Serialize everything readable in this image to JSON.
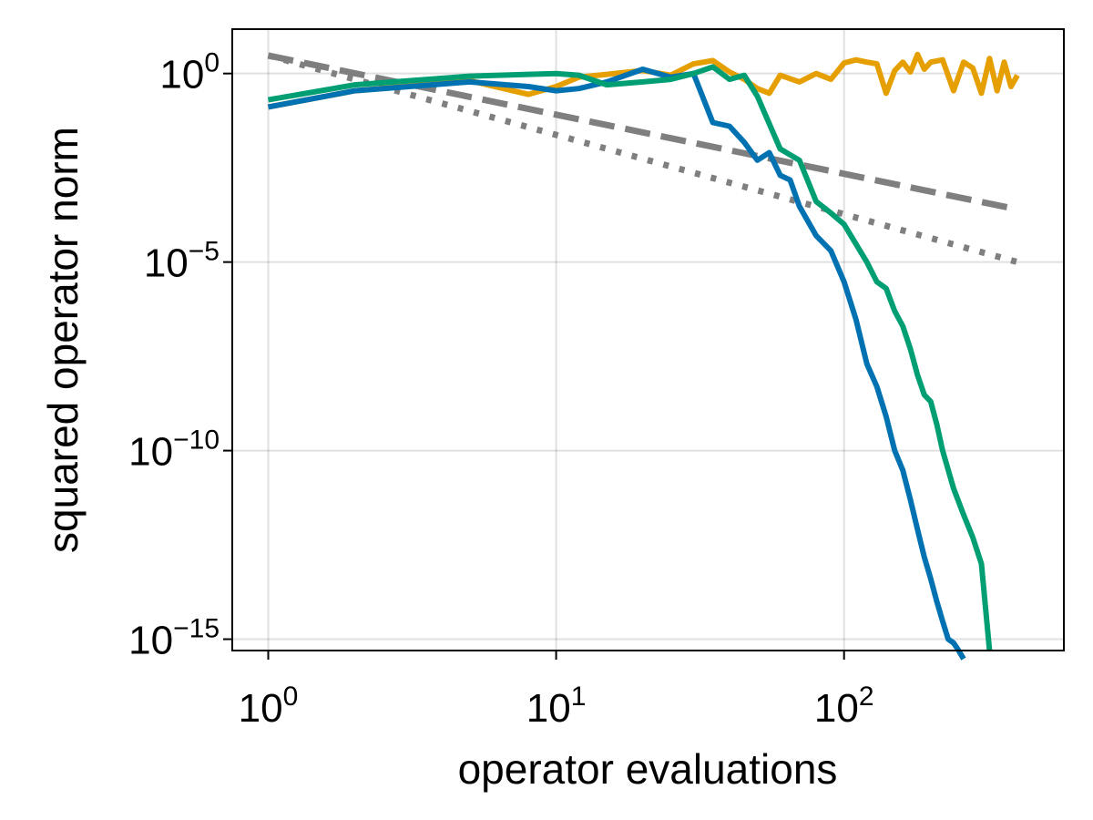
{
  "chart_data": {
    "type": "line",
    "title": "",
    "xlabel": "operator evaluations",
    "ylabel": "squared operator norm",
    "xscale": "log10",
    "yscale": "log10",
    "xlim": [
      0.75,
      580
    ],
    "ylim": [
      5e-16,
      15.0
    ],
    "grid": true,
    "legend": "none",
    "x_ticks": [
      {
        "base": "10",
        "exp": "0",
        "value": 1
      },
      {
        "base": "10",
        "exp": "1",
        "value": 10
      },
      {
        "base": "10",
        "exp": "2",
        "value": 100
      }
    ],
    "y_ticks": [
      {
        "base": "10",
        "exp": "0",
        "value": 1
      },
      {
        "base": "10",
        "exp": "−5",
        "value": 1e-05
      },
      {
        "base": "10",
        "exp": "−10",
        "value": 1e-10
      },
      {
        "base": "10",
        "exp": "−15",
        "value": 1e-15
      }
    ],
    "series": [
      {
        "color": "#E69F00",
        "style": "solid",
        "x": [
          1,
          2,
          5,
          8,
          10,
          12,
          15,
          20,
          25,
          30,
          35,
          40,
          45,
          50,
          55,
          60,
          70,
          80,
          90,
          100,
          110,
          120,
          130,
          140,
          150,
          160,
          170,
          180,
          190,
          200,
          220,
          240,
          260,
          280,
          300,
          320,
          340,
          360,
          380,
          400
        ],
        "y": [
          0.13,
          0.35,
          0.65,
          0.28,
          0.45,
          0.8,
          0.95,
          1.2,
          0.9,
          1.8,
          2.2,
          1.1,
          0.7,
          0.4,
          0.3,
          0.9,
          0.6,
          1.0,
          0.7,
          1.9,
          2.3,
          2.0,
          1.8,
          0.3,
          1.2,
          2.0,
          1.1,
          3.2,
          1.3,
          2.0,
          2.3,
          0.35,
          2.0,
          1.4,
          0.3,
          2.5,
          0.35,
          2.0,
          0.45,
          0.9
        ]
      },
      {
        "color": "#0072B2",
        "style": "solid",
        "x": [
          1,
          2,
          5,
          8,
          10,
          12,
          15,
          20,
          25,
          30,
          35,
          40,
          45,
          50,
          55,
          60,
          65,
          70,
          80,
          90,
          100,
          110,
          120,
          130,
          140,
          150,
          160,
          170,
          180,
          190,
          200,
          210,
          220,
          230,
          240,
          250,
          260
        ],
        "y": [
          0.13,
          0.35,
          0.6,
          0.45,
          0.35,
          0.4,
          0.6,
          1.3,
          0.8,
          1.0,
          0.05,
          0.04,
          0.015,
          0.005,
          0.008,
          0.002,
          0.0015,
          0.0003,
          5e-05,
          2e-05,
          3e-06,
          3e-07,
          2e-08,
          5e-09,
          8e-10,
          1e-10,
          3e-11,
          5e-12,
          8e-13,
          1.5e-13,
          4e-14,
          1e-14,
          3e-15,
          1e-15,
          8e-16,
          5e-16,
          3e-16
        ]
      },
      {
        "color": "#009E73",
        "style": "solid",
        "x": [
          1,
          2,
          5,
          8,
          10,
          12,
          15,
          20,
          25,
          30,
          35,
          40,
          45,
          50,
          60,
          70,
          80,
          90,
          100,
          110,
          120,
          130,
          140,
          150,
          160,
          170,
          180,
          190,
          200,
          210,
          220,
          240,
          260,
          280,
          300,
          320
        ],
        "y": [
          0.2,
          0.5,
          0.85,
          0.95,
          1.0,
          0.9,
          0.5,
          0.6,
          0.7,
          1.0,
          1.5,
          0.7,
          0.9,
          0.25,
          0.01,
          0.005,
          0.0004,
          0.0002,
          0.0001,
          3e-05,
          1e-05,
          3e-06,
          2e-06,
          5e-07,
          2e-07,
          5e-08,
          1e-08,
          3e-09,
          2e-09,
          5e-10,
          1e-10,
          1e-11,
          2e-12,
          5e-13,
          1e-13,
          5e-16
        ]
      },
      {
        "color": "#7f7f7f",
        "style": "dashed",
        "x": [
          1,
          400
        ],
        "y": [
          3.0,
          0.00025
        ]
      },
      {
        "color": "#7f7f7f",
        "style": "dotted",
        "x": [
          1,
          400
        ],
        "y": [
          3.0,
          1e-05
        ]
      }
    ]
  }
}
